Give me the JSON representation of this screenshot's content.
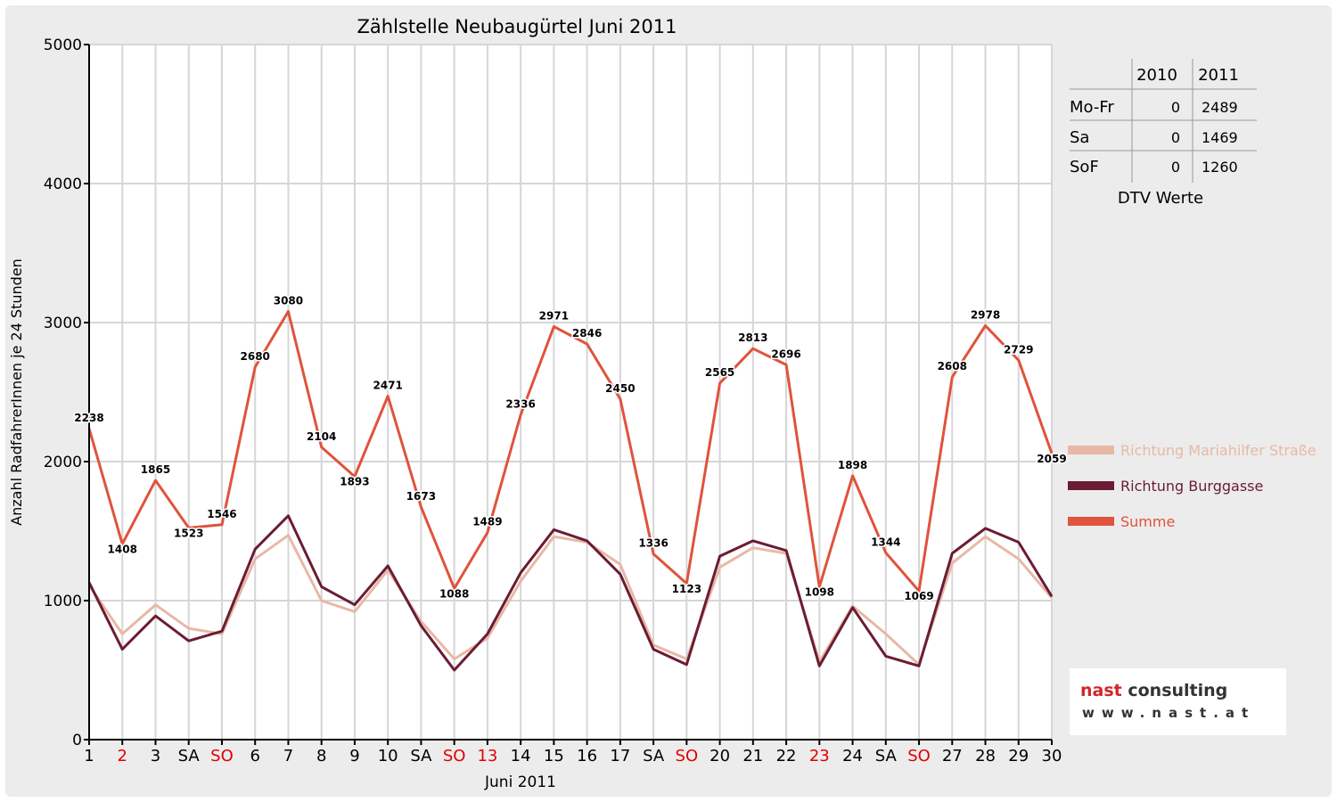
{
  "chart_data": {
    "type": "line",
    "title": "Zählstelle Neubaugürtel Juni 2011",
    "xlabel": "Juni 2011",
    "ylabel": "Anzahl RadfahrerInnen je 24 Stunden",
    "ylim": [
      0,
      5000
    ],
    "yticks": [
      "0",
      "1000",
      "2000",
      "3000",
      "4000",
      "5000"
    ],
    "grid": true,
    "legend_position": "right",
    "x": [
      1,
      2,
      3,
      4,
      5,
      6,
      7,
      8,
      9,
      10,
      11,
      12,
      13,
      14,
      15,
      16,
      17,
      18,
      19,
      20,
      21,
      22,
      23,
      24,
      25,
      26,
      27,
      28,
      29,
      30
    ],
    "categories": [
      "1",
      "2",
      "3",
      "SA",
      "SO",
      "6",
      "7",
      "8",
      "9",
      "10",
      "SA",
      "SO",
      "13",
      "14",
      "15",
      "16",
      "17",
      "SA",
      "SO",
      "20",
      "21",
      "22",
      "23",
      "24",
      "SA",
      "SO",
      "27",
      "28",
      "29",
      "30"
    ],
    "holiday_days": [
      2,
      5,
      12,
      13,
      19,
      23,
      26
    ],
    "holiday_color": "#e00000",
    "series": [
      {
        "name": "Richtung Mariahilfer Straße",
        "color": "#e8b8a6",
        "values": [
          1110,
          760,
          970,
          800,
          760,
          1300,
          1470,
          1000,
          920,
          1220,
          850,
          580,
          730,
          1140,
          1460,
          1420,
          1260,
          680,
          580,
          1240,
          1380,
          1340,
          560,
          960,
          760,
          540,
          1270,
          1460,
          1300,
          1020
        ]
      },
      {
        "name": "Richtung Burggasse",
        "color": "#6b1c33",
        "values": [
          1130,
          650,
          890,
          710,
          780,
          1370,
          1610,
          1100,
          970,
          1250,
          820,
          500,
          760,
          1200,
          1510,
          1430,
          1190,
          650,
          540,
          1320,
          1430,
          1360,
          530,
          950,
          600,
          530,
          1340,
          1520,
          1420,
          1030
        ]
      },
      {
        "name": "Summe",
        "color": "#e0533c",
        "values": [
          2238,
          1408,
          1865,
          1523,
          1546,
          2680,
          3080,
          2104,
          1893,
          2471,
          1673,
          1088,
          1489,
          2336,
          2971,
          2846,
          2450,
          1336,
          1123,
          2565,
          2813,
          2696,
          1098,
          1898,
          1344,
          1069,
          2608,
          2978,
          2729,
          2059
        ]
      }
    ],
    "data_labels": [
      "2238",
      "1408",
      "1865",
      "1523",
      "1546",
      "2680",
      "3080",
      "2104",
      "1893",
      "2471",
      "1673",
      "1088",
      "1489",
      "2336",
      "2971",
      "2846",
      "2450",
      "1336",
      "1123",
      "2565",
      "2813",
      "2696",
      "1098",
      "1898",
      "1344",
      "1069",
      "2608",
      "2978",
      "2729",
      "2059"
    ]
  },
  "dtv_table": {
    "headers": [
      "2010",
      "2011"
    ],
    "rows": [
      {
        "label": "Mo-Fr",
        "v2010": "0",
        "v2011": "2489"
      },
      {
        "label": "Sa",
        "v2010": "0",
        "v2011": "1469"
      },
      {
        "label": "SoF",
        "v2010": "0",
        "v2011": "1260"
      }
    ],
    "caption": "DTV Werte"
  },
  "logo": {
    "main_accent": "nast",
    "main_rest": " consulting",
    "sub": "www.nast.at"
  }
}
